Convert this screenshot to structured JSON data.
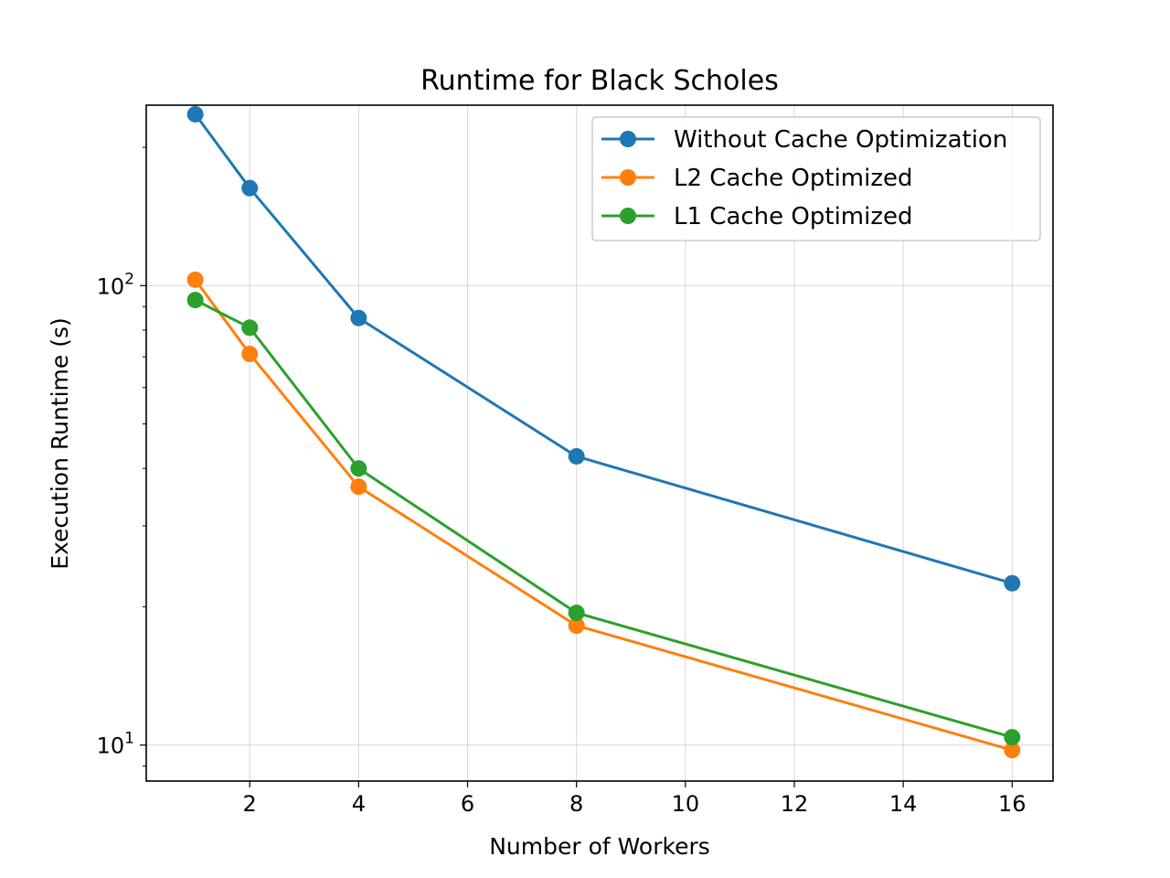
{
  "chart_data": {
    "type": "line",
    "title": "Runtime for Black Scholes",
    "xlabel": "Number of Workers",
    "ylabel": "Execution Runtime (s)",
    "x": [
      1,
      2,
      4,
      8,
      16
    ],
    "xlim": [
      0.1,
      16.75
    ],
    "ylim": [
      8.35,
      247
    ],
    "yscale": "log",
    "xticks": [
      2,
      4,
      6,
      8,
      10,
      12,
      14,
      16
    ],
    "xtick_labels": [
      "2",
      "4",
      "6",
      "8",
      "10",
      "12",
      "14",
      "16"
    ],
    "yticks": [
      {
        "value": 10,
        "base": "10",
        "exp": "1"
      },
      {
        "value": 100,
        "base": "10",
        "exp": "2"
      }
    ],
    "grid": true,
    "legend_position": "upper right",
    "series": [
      {
        "name": "Without Cache Optimization",
        "color": "#1f77b4",
        "values": [
          236,
          163,
          85,
          42.5,
          22.5
        ]
      },
      {
        "name": "L2 Cache Optimized",
        "color": "#ff7f0e",
        "values": [
          103,
          71,
          36.5,
          18.2,
          9.75
        ]
      },
      {
        "name": "L1 Cache Optimized",
        "color": "#2ca02c",
        "values": [
          93,
          81,
          40,
          19.4,
          10.4
        ]
      }
    ]
  }
}
